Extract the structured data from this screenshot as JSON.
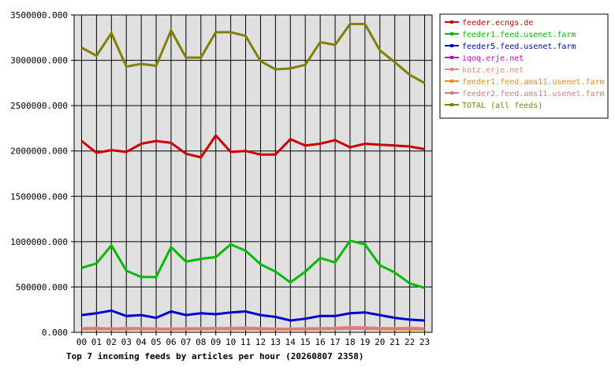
{
  "chart_data": {
    "type": "line",
    "title": "Top 7 incoming feeds by articles per hour (20260807 2358)",
    "x": [
      "00",
      "01",
      "02",
      "03",
      "04",
      "05",
      "06",
      "07",
      "08",
      "09",
      "10",
      "11",
      "12",
      "13",
      "14",
      "15",
      "16",
      "17",
      "18",
      "19",
      "20",
      "21",
      "22",
      "23"
    ],
    "ylim": [
      0,
      3500000
    ],
    "yticks": [
      "0.000",
      "500000.000",
      "1000000.000",
      "1500000.000",
      "2000000.000",
      "2500000.000",
      "3000000.000",
      "3500000.000"
    ],
    "grid": true,
    "legend_position": "right",
    "series": [
      {
        "name": "feeder.ecngs.de",
        "color": "#cc0000",
        "values": [
          2110000,
          1980000,
          2010000,
          1990000,
          2080000,
          2110000,
          2090000,
          1970000,
          1930000,
          2170000,
          1990000,
          2000000,
          1960000,
          1960000,
          2130000,
          2060000,
          2080000,
          2120000,
          2040000,
          2080000,
          2070000,
          2060000,
          2050000,
          2020000
        ]
      },
      {
        "name": "feeder1.feed.usenet.farm",
        "color": "#00bb00",
        "values": [
          710000,
          760000,
          960000,
          680000,
          610000,
          610000,
          940000,
          780000,
          810000,
          830000,
          970000,
          900000,
          750000,
          670000,
          550000,
          670000,
          820000,
          770000,
          1010000,
          970000,
          740000,
          660000,
          540000,
          490000
        ]
      },
      {
        "name": "feeder5.feed.usenet.farm",
        "color": "#0000cc",
        "values": [
          190000,
          210000,
          240000,
          180000,
          190000,
          160000,
          230000,
          190000,
          210000,
          200000,
          220000,
          230000,
          190000,
          170000,
          130000,
          150000,
          180000,
          180000,
          210000,
          220000,
          190000,
          160000,
          140000,
          130000
        ]
      },
      {
        "name": "iqoq.erje.net",
        "color": "#cc00cc",
        "values": [
          40000,
          45000,
          42000,
          43000,
          44000,
          40000,
          38000,
          39000,
          41000,
          43000,
          42000,
          44000,
          40000,
          38000,
          37000,
          39000,
          41000,
          42000,
          50000,
          48000,
          44000,
          42000,
          40000,
          38000
        ]
      },
      {
        "name": "kotz.erje.net",
        "color": "#ff8080",
        "values": [
          45000,
          50000,
          40000,
          48000,
          46000,
          42000,
          40000,
          44000,
          45000,
          47000,
          48000,
          52000,
          46000,
          42000,
          40000,
          44000,
          46000,
          48000,
          60000,
          55000,
          48000,
          46000,
          50000,
          44000
        ]
      },
      {
        "name": "feeder1.feed.ams11.usenet.farm",
        "color": "#ff8800",
        "values": [
          35000,
          36000,
          34000,
          35000,
          36000,
          33000,
          32000,
          34000,
          35000,
          36000,
          35000,
          37000,
          34000,
          33000,
          32000,
          34000,
          35000,
          36000,
          40000,
          38000,
          35000,
          34000,
          33000,
          32000
        ]
      },
      {
        "name": "feeder2.feed.ams11.usenet.farm",
        "color": "#d08080",
        "values": [
          38000,
          40000,
          36000,
          39000,
          40000,
          37000,
          35000,
          37000,
          39000,
          40000,
          41000,
          44000,
          39000,
          36000,
          35000,
          38000,
          40000,
          41000,
          48000,
          45000,
          40000,
          39000,
          42000,
          37000
        ]
      },
      {
        "name": "TOTAL (all feeds)",
        "color": "#808000",
        "values": [
          3140000,
          3050000,
          3300000,
          2930000,
          2960000,
          2940000,
          3330000,
          3030000,
          3030000,
          3310000,
          3310000,
          3270000,
          2990000,
          2900000,
          2910000,
          2950000,
          3200000,
          3170000,
          3400000,
          3400000,
          3110000,
          2980000,
          2840000,
          2750000
        ]
      }
    ]
  }
}
